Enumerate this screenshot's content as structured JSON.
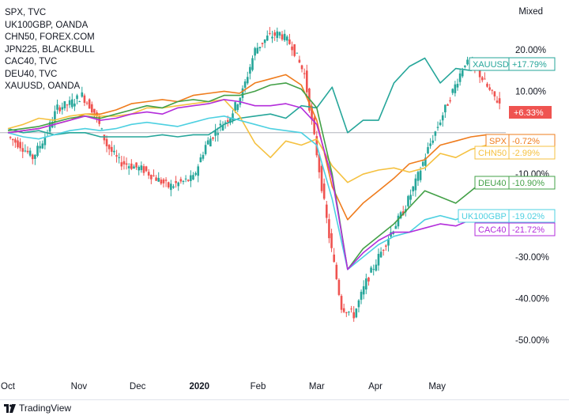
{
  "legend": [
    "SPX, TVC",
    "UK100GBP, OANDA",
    "CHN50, FOREX.COM",
    "JPN225, BLACKBULL",
    "CAC40, TVC",
    "DEU40, TVC",
    "XAUUSD, OANDA"
  ],
  "scale_mode": "Mixed",
  "brand": "TradingView",
  "chart_data": {
    "type": "line",
    "x_tick_labels": [
      "Oct",
      "Nov",
      "Dec",
      "2020",
      "Feb",
      "Mar",
      "Apr",
      "May"
    ],
    "y_tick_labels": [
      "20.00%",
      "10.00%",
      "-10.00%",
      "-30.00%",
      "-40.00%",
      "-50.00%"
    ],
    "y_ticks": [
      20,
      10,
      -10,
      -30,
      -40,
      -50
    ],
    "ylim": [
      -55,
      27
    ],
    "x_range": [
      0,
      163
    ],
    "x_tick_positions": [
      0,
      23,
      42,
      62,
      81,
      100,
      119,
      139
    ],
    "series": [
      {
        "name": "XAUUSD",
        "label": "+17.79%",
        "end_value": 17.79,
        "color": "#26a69a",
        "x": [
          0,
          5,
          10,
          15,
          20,
          25,
          30,
          35,
          40,
          45,
          50,
          55,
          60,
          65,
          70,
          75,
          80,
          85,
          90,
          95,
          100,
          105,
          110,
          115,
          120,
          125,
          130,
          135,
          140,
          145,
          150,
          155,
          160
        ],
        "y": [
          1,
          0,
          0.5,
          -0.5,
          0,
          0,
          -1,
          -1,
          -1,
          -1,
          -0.5,
          -1,
          -0.5,
          -0.5,
          2,
          3.5,
          4,
          4.5,
          3.5,
          6.5,
          6,
          11,
          0,
          3,
          3,
          12,
          16,
          18,
          12,
          15.5,
          15,
          17.5,
          17.79
        ]
      },
      {
        "name": "SPX",
        "label": "-0.72%",
        "end_value": -0.72,
        "color": "#ef7c1d",
        "x": [
          0,
          5,
          10,
          15,
          20,
          25,
          30,
          35,
          40,
          45,
          50,
          55,
          60,
          65,
          70,
          75,
          80,
          85,
          90,
          95,
          100,
          105,
          110,
          115,
          120,
          125,
          130,
          135,
          140,
          145,
          150,
          155,
          160
        ],
        "y": [
          0,
          0.5,
          1,
          2,
          3,
          4.5,
          4.5,
          5.5,
          7,
          7.5,
          8,
          7.5,
          9,
          9.5,
          10,
          9.5,
          12,
          13,
          14,
          11.5,
          3,
          -13,
          -21,
          -17,
          -14,
          -11,
          -7.5,
          -6.5,
          -3,
          -2,
          -1,
          -0.5,
          -0.72
        ]
      },
      {
        "name": "CHN50",
        "label": "-2.99%",
        "end_value": -2.99,
        "color": "#f5c140",
        "x": [
          0,
          5,
          10,
          15,
          20,
          25,
          30,
          35,
          40,
          45,
          50,
          55,
          60,
          65,
          70,
          75,
          80,
          85,
          90,
          95,
          100,
          105,
          110,
          115,
          120,
          125,
          130,
          135,
          140,
          145,
          150,
          155,
          160
        ],
        "y": [
          1,
          2,
          3.5,
          3,
          4,
          4.5,
          4,
          4,
          4.5,
          6,
          6,
          6.5,
          7,
          7.5,
          8,
          4,
          -2.5,
          -6,
          -2,
          -3,
          -1.5,
          -8,
          -12,
          -10,
          -9,
          -8.5,
          -9.5,
          -8.5,
          -5,
          -6,
          -4,
          -3,
          -2.99
        ]
      },
      {
        "name": "DEU40",
        "label": "-10.90%",
        "end_value": -10.9,
        "color": "#43a047",
        "x": [
          0,
          5,
          10,
          15,
          20,
          25,
          30,
          35,
          40,
          45,
          50,
          55,
          60,
          65,
          70,
          75,
          80,
          85,
          90,
          95,
          100,
          105,
          110,
          115,
          120,
          125,
          130,
          135,
          140,
          145,
          150,
          155,
          160
        ],
        "y": [
          0.5,
          1,
          1.5,
          2.5,
          3.5,
          4,
          3.5,
          4.5,
          5.5,
          6.5,
          6,
          7.5,
          8,
          7.5,
          9,
          9,
          10,
          11.5,
          12,
          10.5,
          6,
          -10,
          -33,
          -28,
          -25,
          -22,
          -18,
          -14,
          -15.5,
          -17,
          -14,
          -11,
          -10.9
        ]
      },
      {
        "name": "UK100GBP",
        "label": "-19.02%",
        "end_value": -19.02,
        "color": "#4dd0e1",
        "x": [
          0,
          5,
          10,
          15,
          20,
          25,
          30,
          35,
          40,
          45,
          50,
          55,
          60,
          65,
          70,
          75,
          80,
          85,
          90,
          95,
          100,
          105,
          110,
          115,
          120,
          125,
          130,
          135,
          140,
          145,
          150,
          155,
          160
        ],
        "y": [
          0,
          -1,
          -1.5,
          -0.5,
          0.5,
          1,
          0.5,
          1,
          2,
          2.5,
          2,
          1.5,
          2.5,
          3.5,
          4,
          3,
          2,
          1,
          0.5,
          0,
          -3,
          -16,
          -33,
          -30,
          -27,
          -25,
          -24,
          -21,
          -20,
          -21,
          -19.5,
          -19,
          -19.02
        ]
      },
      {
        "name": "CAC40",
        "label": "-21.72%",
        "end_value": -21.72,
        "color": "#b32ddb",
        "x": [
          0,
          5,
          10,
          15,
          20,
          25,
          30,
          35,
          40,
          45,
          50,
          55,
          60,
          65,
          70,
          75,
          80,
          85,
          90,
          95,
          100,
          105,
          110,
          115,
          120,
          125,
          130,
          135,
          140,
          145,
          150,
          155,
          160
        ],
        "y": [
          0,
          0.5,
          1,
          2,
          3,
          4,
          3,
          3.5,
          4.5,
          5,
          4.5,
          6,
          6.5,
          7,
          8,
          7.5,
          6.5,
          6.5,
          7,
          6,
          2,
          -11,
          -33,
          -29,
          -26,
          -24,
          -24,
          -23,
          -22,
          -22.5,
          -21,
          -22,
          -21.72
        ]
      },
      {
        "name": "JPN225",
        "label": "",
        "end_value": 6.33,
        "color": "#ef5350",
        "type": "candles",
        "x": [
          0,
          4,
          8,
          12,
          16,
          20,
          24,
          28,
          32,
          36,
          40,
          44,
          48,
          52,
          56,
          60,
          64,
          68,
          72,
          76,
          80,
          84,
          88,
          92,
          96,
          100,
          104,
          108,
          112,
          116,
          120,
          124,
          128,
          132,
          136,
          140,
          144,
          148,
          152,
          156,
          160
        ],
        "y": [
          -1,
          -3,
          -6,
          -1,
          6,
          7,
          9,
          5,
          -3,
          -7,
          -8,
          -9,
          -11,
          -13,
          -12,
          -11,
          -3,
          1,
          4,
          10,
          20,
          23,
          24,
          21,
          14,
          -5,
          -25,
          -42,
          -44,
          -36,
          -30,
          -24,
          -19,
          -12,
          -4,
          3,
          10,
          17,
          15,
          10,
          6.33
        ]
      }
    ]
  }
}
